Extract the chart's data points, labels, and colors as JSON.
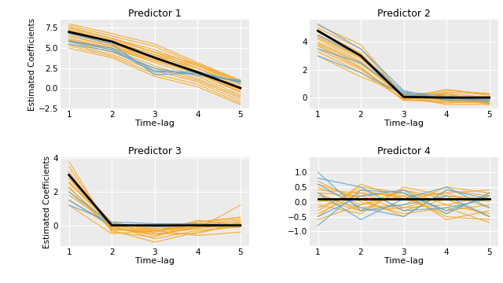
{
  "titles": [
    "Predictor 1",
    "Predictor 2",
    "Predictor 3",
    "Predictor 4"
  ],
  "xlabel": "Time–lag",
  "ylabel": "Estimated Coefficients",
  "bg_color": "#EBEBEB",
  "orange_color": "#F5A623",
  "blue_color": "#5BA4CF",
  "black_color": "#000000",
  "grid_color": "#FFFFFF",
  "lags": [
    1,
    2,
    3,
    4,
    5
  ],
  "p1_orange": [
    [
      8.0,
      6.8,
      5.5,
      3.2,
      1.0
    ],
    [
      7.8,
      6.5,
      5.2,
      3.0,
      0.8
    ],
    [
      7.5,
      6.2,
      4.8,
      2.8,
      0.5
    ],
    [
      7.3,
      6.0,
      4.5,
      2.5,
      0.2
    ],
    [
      7.0,
      5.8,
      4.2,
      2.2,
      0.0
    ],
    [
      6.8,
      5.5,
      3.8,
      2.0,
      -0.2
    ],
    [
      6.5,
      5.2,
      3.5,
      1.8,
      -0.5
    ],
    [
      6.2,
      5.0,
      3.2,
      1.5,
      -0.8
    ],
    [
      6.0,
      4.8,
      2.8,
      1.2,
      -1.0
    ],
    [
      5.8,
      4.5,
      2.5,
      1.0,
      -1.2
    ],
    [
      5.5,
      4.2,
      2.2,
      0.8,
      -1.5
    ],
    [
      5.3,
      4.0,
      1.8,
      0.5,
      -1.8
    ],
    [
      5.0,
      3.8,
      1.5,
      0.2,
      -2.0
    ],
    [
      6.8,
      5.5,
      4.0,
      2.5,
      0.5
    ],
    [
      7.2,
      5.8,
      4.2,
      2.8,
      0.8
    ],
    [
      7.6,
      6.2,
      4.5,
      3.0,
      1.0
    ],
    [
      6.5,
      5.3,
      3.7,
      2.1,
      -0.1
    ],
    [
      6.0,
      5.0,
      3.4,
      1.9,
      -0.4
    ]
  ],
  "p1_blue": [
    [
      6.8,
      5.5,
      1.7,
      1.9,
      0.8
    ],
    [
      5.8,
      4.8,
      2.0,
      2.1,
      0.7
    ],
    [
      5.5,
      4.6,
      2.5,
      1.6,
      1.0
    ],
    [
      5.9,
      5.0,
      2.2,
      1.8,
      0.9
    ]
  ],
  "p1_black": [
    7.0,
    5.8,
    3.8,
    2.0,
    0.05
  ],
  "p2_orange": [
    [
      5.0,
      3.5,
      0.1,
      -0.2,
      -0.3
    ],
    [
      4.8,
      3.2,
      0.0,
      -0.1,
      -0.4
    ],
    [
      4.5,
      3.0,
      -0.1,
      0.1,
      -0.5
    ],
    [
      4.3,
      2.8,
      0.2,
      0.2,
      -0.3
    ],
    [
      4.0,
      2.5,
      0.0,
      -0.3,
      -0.4
    ],
    [
      3.8,
      2.2,
      -0.2,
      0.4,
      0.2
    ],
    [
      3.5,
      2.0,
      0.1,
      0.5,
      0.3
    ],
    [
      3.3,
      1.8,
      -0.1,
      -0.4,
      -0.2
    ],
    [
      3.0,
      1.5,
      0.3,
      0.3,
      0.0
    ],
    [
      4.2,
      2.6,
      0.1,
      -0.5,
      -0.5
    ],
    [
      4.7,
      3.1,
      -0.1,
      0.6,
      0.2
    ],
    [
      3.9,
      2.4,
      0.2,
      -0.2,
      -0.3
    ],
    [
      4.4,
      2.9,
      0.0,
      0.3,
      -0.4
    ],
    [
      3.7,
      2.1,
      -0.2,
      -0.3,
      -0.1
    ],
    [
      5.2,
      3.8,
      0.1,
      0.1,
      0.1
    ]
  ],
  "p2_blue": [
    [
      5.3,
      3.5,
      0.5,
      -0.2,
      -0.1
    ],
    [
      4.5,
      3.0,
      0.4,
      0.1,
      -0.2
    ],
    [
      3.5,
      2.5,
      0.3,
      -0.1,
      0.0
    ],
    [
      3.0,
      1.8,
      0.2,
      0.0,
      -0.3
    ]
  ],
  "p2_black": [
    4.8,
    3.0,
    0.05,
    0.0,
    0.0
  ],
  "p3_orange": [
    [
      3.0,
      0.0,
      -0.3,
      -0.1,
      0.0
    ],
    [
      2.8,
      -0.1,
      -0.5,
      -0.2,
      0.1
    ],
    [
      2.5,
      0.1,
      -0.2,
      0.0,
      0.2
    ],
    [
      2.2,
      0.0,
      -0.8,
      -0.3,
      -0.1
    ],
    [
      2.0,
      -0.2,
      -0.4,
      0.1,
      0.3
    ],
    [
      1.8,
      0.1,
      -0.1,
      0.2,
      0.5
    ],
    [
      1.5,
      -0.1,
      -0.6,
      -0.1,
      0.1
    ],
    [
      3.5,
      -0.3,
      -1.0,
      -0.4,
      0.0
    ],
    [
      3.8,
      -0.4,
      -0.7,
      0.2,
      0.4
    ],
    [
      2.8,
      0.2,
      -0.3,
      -0.2,
      1.2
    ],
    [
      3.2,
      -0.2,
      -0.5,
      -0.5,
      0.2
    ],
    [
      2.6,
      0.0,
      -0.4,
      0.3,
      0.0
    ],
    [
      2.3,
      -0.3,
      -0.2,
      -0.1,
      -0.1
    ],
    [
      1.2,
      -0.5,
      -0.3,
      -0.6,
      -0.4
    ]
  ],
  "p3_blue": [
    [
      2.0,
      0.1,
      -0.1,
      0.0,
      0.0
    ],
    [
      1.2,
      0.2,
      0.1,
      0.1,
      0.0
    ],
    [
      1.5,
      0.0,
      0.0,
      0.0,
      0.0
    ]
  ],
  "p3_black": [
    3.0,
    0.0,
    0.0,
    0.0,
    0.0
  ],
  "p4_orange": [
    [
      0.3,
      0.2,
      -0.3,
      0.1,
      -0.5
    ],
    [
      -0.2,
      0.4,
      0.1,
      -0.4,
      0.3
    ],
    [
      0.5,
      -0.1,
      0.2,
      0.3,
      -0.2
    ],
    [
      -0.4,
      0.3,
      -0.2,
      0.2,
      0.1
    ],
    [
      0.1,
      -0.3,
      0.4,
      -0.1,
      -0.4
    ],
    [
      0.6,
      0.1,
      -0.5,
      0.4,
      0.2
    ],
    [
      -0.3,
      0.5,
      0.3,
      -0.3,
      -0.1
    ],
    [
      0.2,
      -0.2,
      -0.1,
      0.5,
      0.3
    ],
    [
      0.4,
      0.3,
      0.2,
      -0.5,
      -0.6
    ],
    [
      -0.1,
      -0.4,
      0.5,
      0.2,
      0.0
    ],
    [
      0.7,
      0.0,
      -0.4,
      -0.2,
      -0.7
    ],
    [
      -0.5,
      0.6,
      0.1,
      0.3,
      0.4
    ],
    [
      0.3,
      -0.3,
      -0.2,
      -0.1,
      0.2
    ],
    [
      0.0,
      0.2,
      0.3,
      -0.6,
      -0.3
    ],
    [
      -0.6,
      -0.1,
      0.4,
      0.1,
      -0.5
    ]
  ],
  "p4_blue": [
    [
      0.8,
      0.5,
      -0.3,
      -0.2,
      0.1
    ],
    [
      -0.5,
      0.2,
      0.4,
      -0.4,
      0.3
    ],
    [
      0.3,
      -0.6,
      0.1,
      0.5,
      -0.2
    ],
    [
      1.0,
      -0.3,
      -0.1,
      0.2,
      -0.5
    ],
    [
      -0.8,
      0.4,
      0.3,
      -0.3,
      0.2
    ],
    [
      0.6,
      -0.2,
      -0.5,
      0.4,
      0.1
    ]
  ],
  "p4_black": [
    0.1,
    0.1,
    0.1,
    0.1,
    0.1
  ],
  "p4_ylim": [
    -1.5,
    1.5
  ],
  "p4_yticks": [
    -1.0,
    -0.5,
    0.0,
    0.5,
    1.0
  ]
}
